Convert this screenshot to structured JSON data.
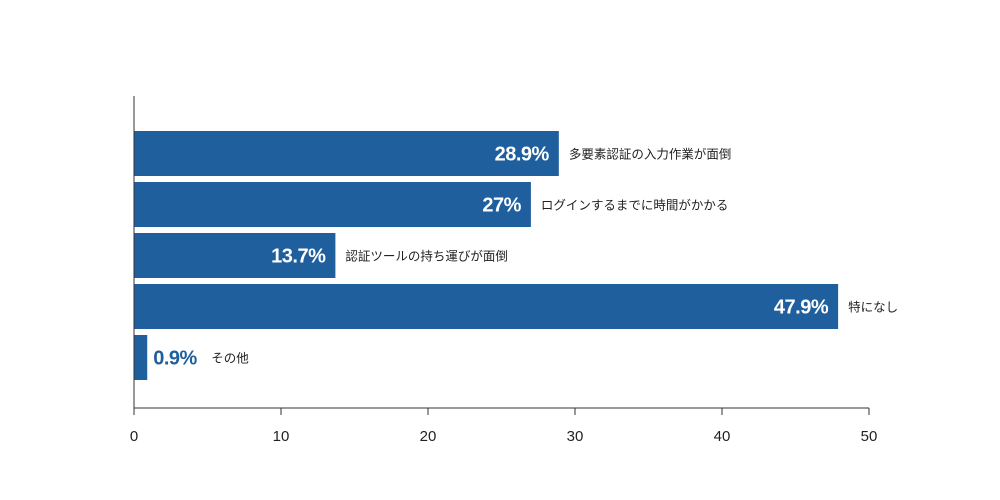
{
  "chart_data": {
    "type": "bar",
    "orientation": "horizontal",
    "title": "",
    "xlabel": "",
    "ylabel": "",
    "xlim": [
      0,
      50
    ],
    "xticks": [
      0,
      10,
      20,
      30,
      40,
      50
    ],
    "grid": false,
    "bar_color": "#1f5f9e",
    "bars": [
      {
        "category": "多要素認証の入力作業が面倒",
        "value": 28.9,
        "label": "28.9%"
      },
      {
        "category": "ログインするまでに時間がかかる",
        "value": 27,
        "label": "27%"
      },
      {
        "category": "認証ツールの持ち運びが面倒",
        "value": 13.7,
        "label": "13.7%"
      },
      {
        "category": "特になし",
        "value": 47.9,
        "label": "47.9%"
      },
      {
        "category": "その他",
        "value": 0.9,
        "label": "0.9%"
      }
    ]
  }
}
